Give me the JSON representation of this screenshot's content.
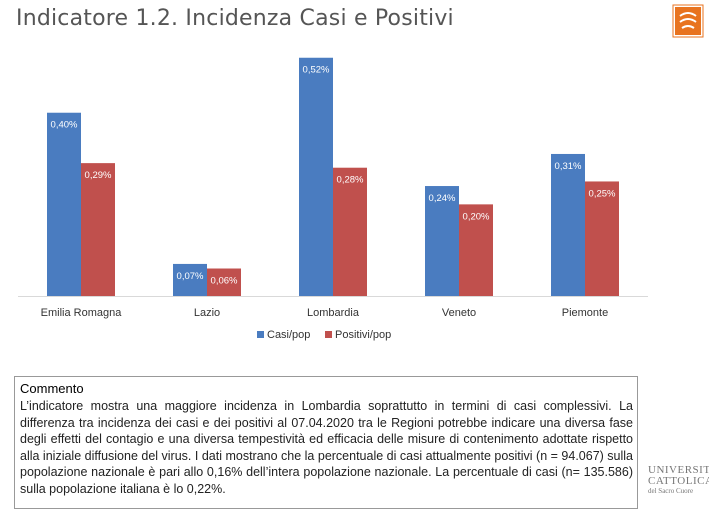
{
  "header": {
    "title": "Indicatore 1.2. Incidenza Casi e Positivi"
  },
  "chart_data": {
    "type": "bar",
    "title": "",
    "xlabel": "",
    "ylabel": "",
    "ylim": [
      0,
      0.0055
    ],
    "grid": false,
    "legend_position": "bottom",
    "categories": [
      "Emilia Romagna",
      "Lazio",
      "Lombardia",
      "Veneto",
      "Piemonte"
    ],
    "series": [
      {
        "name": "Casi/pop",
        "color": "#4a7cc0",
        "values": [
          0.004,
          0.0007,
          0.0052,
          0.0024,
          0.0031
        ],
        "labels": [
          "0,40%",
          "0,07%",
          "0,52%",
          "0,24%",
          "0,31%"
        ]
      },
      {
        "name": "Positivi/pop",
        "color": "#c0504d",
        "values": [
          0.0029,
          0.0006,
          0.0028,
          0.002,
          0.0025
        ],
        "labels": [
          "0,29%",
          "0,06%",
          "0,28%",
          "0,20%",
          "0,25%"
        ]
      }
    ]
  },
  "comment": {
    "title": "Commento",
    "text": "L’indicatore mostra una maggiore incidenza in Lombardia soprattutto in termini di casi complessivi. La differenza tra incidenza dei casi e dei positivi al 07.04.2020 tra le Regioni potrebbe indicare una diversa fase degli effetti del contagio e una diversa tempestività ed efficacia delle misure di contenimento adottate rispetto alla iniziale diffusione del virus. I dati mostrano che la percentuale di casi attualmente positivi (n = 94.067) sulla popolazione nazionale è pari allo 0,16% dell’intera popolazione nazionale. La percentuale di casi (n= 135.586) sulla popolazione italiana è lo 0,22%."
  },
  "logo": {
    "line1": "UNIVERSITÀ",
    "line2": "CATTOLICA",
    "line3": "del Sacro Cuore",
    "badge_colors": [
      "#e8731f",
      "#ffffff"
    ]
  }
}
